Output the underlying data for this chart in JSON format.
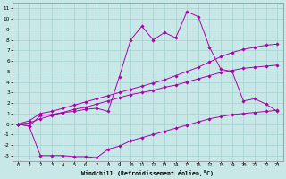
{
  "xlabel": "Windchill (Refroidissement éolien,°C)",
  "bg_color": "#c8e8e8",
  "grid_color": "#aad4d4",
  "line_color": "#aa00aa",
  "xlim": [
    -0.5,
    23.5
  ],
  "ylim": [
    -3.5,
    11.5
  ],
  "x_ticks": [
    0,
    1,
    2,
    3,
    4,
    5,
    6,
    7,
    8,
    9,
    10,
    11,
    12,
    13,
    14,
    15,
    16,
    17,
    18,
    19,
    20,
    21,
    22,
    23
  ],
  "y_ticks": [
    -3,
    -2,
    -1,
    0,
    1,
    2,
    3,
    4,
    5,
    6,
    7,
    8,
    9,
    10,
    11
  ],
  "line1_x": [
    0,
    1,
    2,
    3,
    4,
    5,
    6,
    7,
    8,
    9,
    10,
    11,
    12,
    13,
    14,
    15,
    16,
    17,
    18,
    19,
    20,
    21,
    22,
    23
  ],
  "line1_y": [
    0.0,
    -0.2,
    0.8,
    0.9,
    1.1,
    1.2,
    1.4,
    1.5,
    1.2,
    4.5,
    8.0,
    9.3,
    8.0,
    8.7,
    8.2,
    10.7,
    10.2,
    7.3,
    5.2,
    5.0,
    2.2,
    2.4,
    1.9,
    1.2
  ],
  "line2_x": [
    0,
    1,
    2,
    3,
    4,
    5,
    6,
    7,
    8,
    9,
    10,
    11,
    12,
    13,
    14,
    15,
    16,
    17,
    18,
    19,
    20,
    21,
    22,
    23
  ],
  "line2_y": [
    0.0,
    0.3,
    1.0,
    1.2,
    1.5,
    1.8,
    2.1,
    2.4,
    2.7,
    3.0,
    3.3,
    3.6,
    3.9,
    4.2,
    4.6,
    5.0,
    5.4,
    5.9,
    6.4,
    6.8,
    7.1,
    7.3,
    7.5,
    7.6
  ],
  "line3_x": [
    0,
    1,
    2,
    3,
    4,
    5,
    6,
    7,
    8,
    9,
    10,
    11,
    12,
    13,
    14,
    15,
    16,
    17,
    18,
    19,
    20,
    21,
    22,
    23
  ],
  "line3_y": [
    0.0,
    0.1,
    0.5,
    0.8,
    1.1,
    1.4,
    1.6,
    1.9,
    2.2,
    2.5,
    2.8,
    3.0,
    3.2,
    3.5,
    3.7,
    4.0,
    4.3,
    4.6,
    4.9,
    5.1,
    5.3,
    5.4,
    5.5,
    5.6
  ],
  "line4_x": [
    0,
    1,
    2,
    3,
    4,
    5,
    6,
    7,
    8,
    9,
    10,
    11,
    12,
    13,
    14,
    15,
    16,
    17,
    18,
    19,
    20,
    21,
    22,
    23
  ],
  "line4_y": [
    0.0,
    -0.2,
    -3.0,
    -3.0,
    -3.0,
    -3.1,
    -3.1,
    -3.2,
    -2.4,
    -2.1,
    -1.6,
    -1.3,
    -1.0,
    -0.7,
    -0.4,
    -0.1,
    0.2,
    0.5,
    0.7,
    0.9,
    1.0,
    1.1,
    1.2,
    1.3
  ]
}
